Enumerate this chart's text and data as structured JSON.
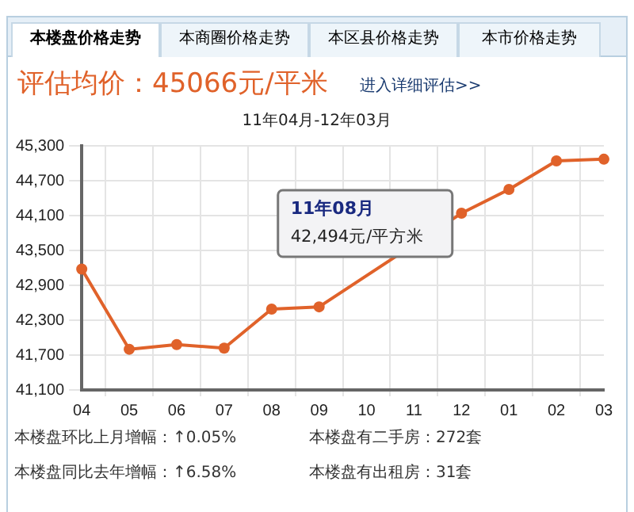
{
  "chart_data": {
    "type": "line",
    "title": "评估均价：45066元/平米",
    "subtitle": "11年04月-12年03月",
    "categories": [
      "04",
      "05",
      "06",
      "07",
      "08",
      "09",
      "10",
      "11",
      "12",
      "01",
      "02",
      "03"
    ],
    "series": [
      {
        "color": "#e0622a",
        "values": [
          43180,
          41800,
          41880,
          41820,
          42490,
          42530,
          null,
          null,
          44140,
          44550,
          45040,
          45070
        ]
      }
    ],
    "ylim": [
      41100,
      45300
    ],
    "yticks": [
      {
        "value": 41100,
        "label": "41,100"
      },
      {
        "value": 41700,
        "label": "41,700"
      },
      {
        "value": 42300,
        "label": "42,300"
      },
      {
        "value": 42900,
        "label": "42,900"
      },
      {
        "value": 43500,
        "label": "43,500"
      },
      {
        "value": 44100,
        "label": "44,100"
      },
      {
        "value": 44700,
        "label": "44,700"
      },
      {
        "value": 45300,
        "label": "45,300"
      }
    ],
    "grid": true,
    "legend": false,
    "marker": "circle",
    "line_style": "solid",
    "annotations": [
      "本楼盘价格走势",
      "本商圈价格走势",
      "本区县价格走势",
      "本市价格走势",
      "进入详细评估>>",
      "11年08月",
      "42,494元/平方米",
      "本楼盘环比上月增幅：↑0.05%",
      "本楼盘有二手房：272套",
      "本楼盘同比去年增幅：↑6.58%",
      "本楼盘有出租房：31套"
    ]
  }
}
